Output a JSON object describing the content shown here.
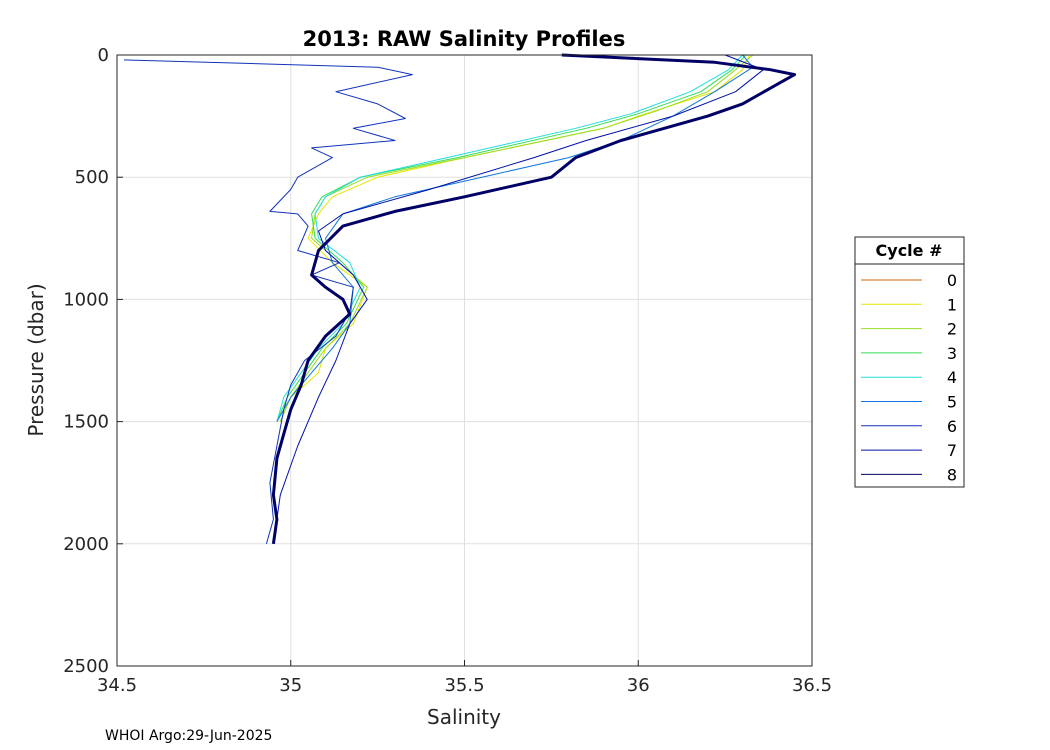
{
  "footer_text": "WHOI Argo:29-Jun-2025",
  "chart_data": {
    "type": "line",
    "title": "2013: RAW Salinity Profiles",
    "xlabel": "Salinity",
    "ylabel": "Pressure (dbar)",
    "xlim": [
      34.5,
      36.5
    ],
    "ylim": [
      0,
      2500
    ],
    "y_reversed": true,
    "grid": true,
    "x_ticks": [
      "34.5",
      "35",
      "35.5",
      "36",
      "36.5"
    ],
    "y_ticks": [
      "0",
      "500",
      "1000",
      "1500",
      "2000",
      "2500"
    ],
    "legend": {
      "title": "Cycle #",
      "position": "right"
    },
    "series": [
      {
        "name": "0",
        "color": "#cc6a00",
        "width": 1,
        "x": [],
        "y": []
      },
      {
        "name": "1",
        "color": "#e6e600",
        "width": 1,
        "x": [
          36.32,
          36.3,
          36.22,
          36.0,
          35.9,
          35.5,
          35.25,
          35.12,
          35.08,
          35.05,
          35.12,
          35.22,
          35.18,
          35.1,
          35.08,
          35.0,
          34.97
        ],
        "y": [
          0,
          60,
          150,
          250,
          300,
          420,
          500,
          580,
          650,
          750,
          850,
          950,
          1100,
          1200,
          1300,
          1400,
          1500
        ]
      },
      {
        "name": "2",
        "color": "#99dd22",
        "width": 1,
        "x": [
          36.33,
          36.28,
          36.2,
          36.05,
          35.9,
          35.5,
          35.22,
          35.1,
          35.07,
          35.06,
          35.14,
          35.22,
          35.17,
          35.1,
          35.05,
          35.0,
          34.97
        ],
        "y": [
          0,
          60,
          150,
          230,
          300,
          420,
          500,
          580,
          650,
          750,
          850,
          950,
          1100,
          1200,
          1300,
          1400,
          1500
        ]
      },
      {
        "name": "3",
        "color": "#33dd55",
        "width": 1,
        "x": [
          36.31,
          36.27,
          36.18,
          36.0,
          35.85,
          35.48,
          35.2,
          35.09,
          35.06,
          35.07,
          35.15,
          35.21,
          35.16,
          35.09,
          35.04,
          34.99,
          34.96
        ],
        "y": [
          0,
          60,
          150,
          240,
          300,
          420,
          500,
          580,
          650,
          750,
          850,
          950,
          1100,
          1200,
          1300,
          1400,
          1500
        ]
      },
      {
        "name": "4",
        "color": "#22dddd",
        "width": 1,
        "x": [
          36.3,
          36.26,
          36.15,
          35.98,
          35.82,
          35.45,
          35.2,
          35.1,
          35.07,
          35.08,
          35.17,
          35.2,
          35.15,
          35.08,
          35.03,
          34.98,
          34.96
        ],
        "y": [
          0,
          60,
          150,
          240,
          300,
          420,
          500,
          580,
          650,
          750,
          850,
          950,
          1100,
          1200,
          1300,
          1400,
          1500
        ]
      },
      {
        "name": "5",
        "color": "#1177dd",
        "width": 1,
        "x": [
          36.3,
          36.33,
          36.22,
          36.1,
          35.95,
          35.8,
          35.55,
          35.3,
          35.15,
          35.1,
          35.12,
          35.18,
          35.17,
          35.12,
          35.06,
          35.0,
          34.96
        ],
        "y": [
          0,
          50,
          150,
          250,
          350,
          420,
          500,
          580,
          650,
          750,
          850,
          950,
          1100,
          1200,
          1300,
          1400,
          1500
        ]
      },
      {
        "name": "6",
        "color": "#1133bb",
        "width": 1,
        "x": [
          34.52,
          35.25,
          35.35,
          35.13,
          35.25,
          35.33,
          35.18,
          35.3,
          35.06,
          35.12,
          35.02,
          35.0,
          34.94,
          35.02,
          35.05,
          35.02,
          35.14,
          35.06,
          35.18,
          35.17,
          35.13,
          35.04,
          35.0,
          34.98,
          34.96,
          34.94,
          34.95,
          34.93
        ],
        "y": [
          20,
          50,
          80,
          150,
          200,
          260,
          300,
          350,
          380,
          420,
          500,
          550,
          640,
          650,
          700,
          800,
          850,
          900,
          950,
          1050,
          1150,
          1250,
          1350,
          1450,
          1600,
          1750,
          1900,
          2000
        ]
      },
      {
        "name": "7",
        "color": "#0011aa",
        "width": 1,
        "x": [
          36.25,
          36.36,
          36.28,
          36.1,
          35.85,
          35.7,
          35.4,
          35.15,
          35.08,
          35.1,
          35.18,
          35.22,
          35.17,
          35.13,
          35.08,
          35.02,
          34.97,
          34.95
        ],
        "y": [
          0,
          60,
          150,
          250,
          350,
          420,
          550,
          650,
          720,
          800,
          900,
          1000,
          1100,
          1250,
          1400,
          1600,
          1800,
          2000
        ]
      },
      {
        "name": "8",
        "color": "#000066",
        "width": 3,
        "x": [
          35.78,
          36.22,
          36.38,
          36.45,
          36.4,
          36.3,
          36.2,
          35.95,
          35.82,
          35.75,
          35.5,
          35.3,
          35.15,
          35.08,
          35.06,
          35.1,
          35.15,
          35.17,
          35.1,
          35.05,
          35.03,
          35.0,
          34.98,
          34.96,
          34.95,
          34.96,
          34.95
        ],
        "y": [
          0,
          30,
          60,
          80,
          120,
          200,
          250,
          350,
          420,
          500,
          580,
          640,
          700,
          800,
          900,
          950,
          1000,
          1060,
          1150,
          1250,
          1350,
          1450,
          1550,
          1650,
          1800,
          1900,
          2000
        ]
      }
    ]
  }
}
